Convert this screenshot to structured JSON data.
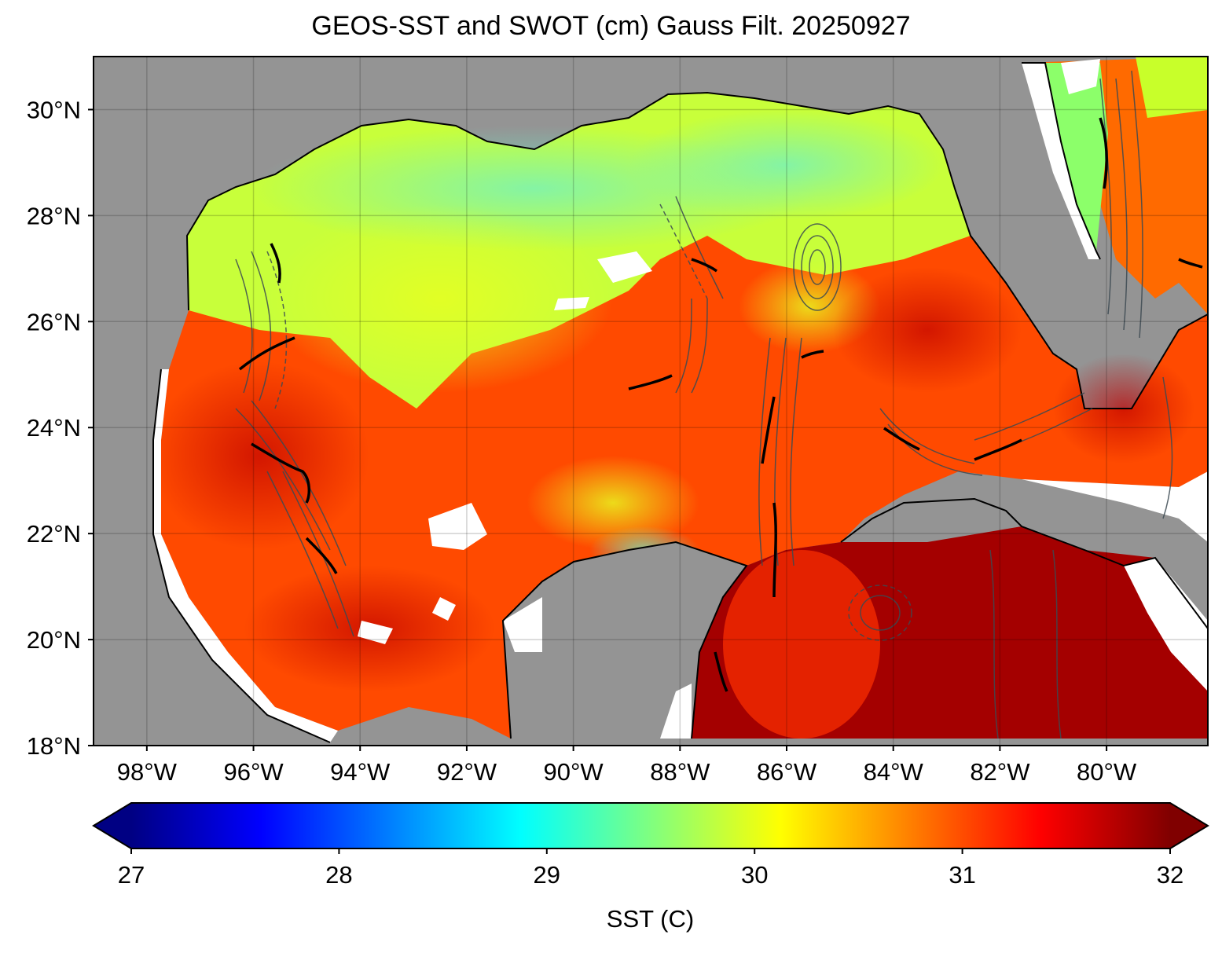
{
  "title": "GEOS-SST  and SWOT (cm) Gauss Filt. 20250927",
  "map": {
    "lat_labels": [
      "30°N",
      "28°N",
      "26°N",
      "24°N",
      "22°N",
      "20°N",
      "18°N"
    ],
    "lat_values": [
      30,
      28,
      26,
      24,
      22,
      20,
      18
    ],
    "lon_labels": [
      "98°W",
      "96°W",
      "94°W",
      "92°W",
      "90°W",
      "88°W",
      "86°W",
      "84°W",
      "82°W",
      "80°W"
    ],
    "lon_values": [
      -98,
      -96,
      -94,
      -92,
      -90,
      -88,
      -86,
      -84,
      -82,
      -80
    ],
    "extent": {
      "lon_min": -99,
      "lon_max": -78.1,
      "lat_min": 18,
      "lat_max": 31
    },
    "land_color": "#949494",
    "gridlines": true,
    "contour_color": "#3c4a52"
  },
  "colorbar": {
    "label": "SST (C)",
    "tick_labels": [
      "27",
      "28",
      "29",
      "30",
      "31",
      "32"
    ],
    "min": 27,
    "max": 32,
    "colormap": "jet",
    "extend": "both"
  }
}
